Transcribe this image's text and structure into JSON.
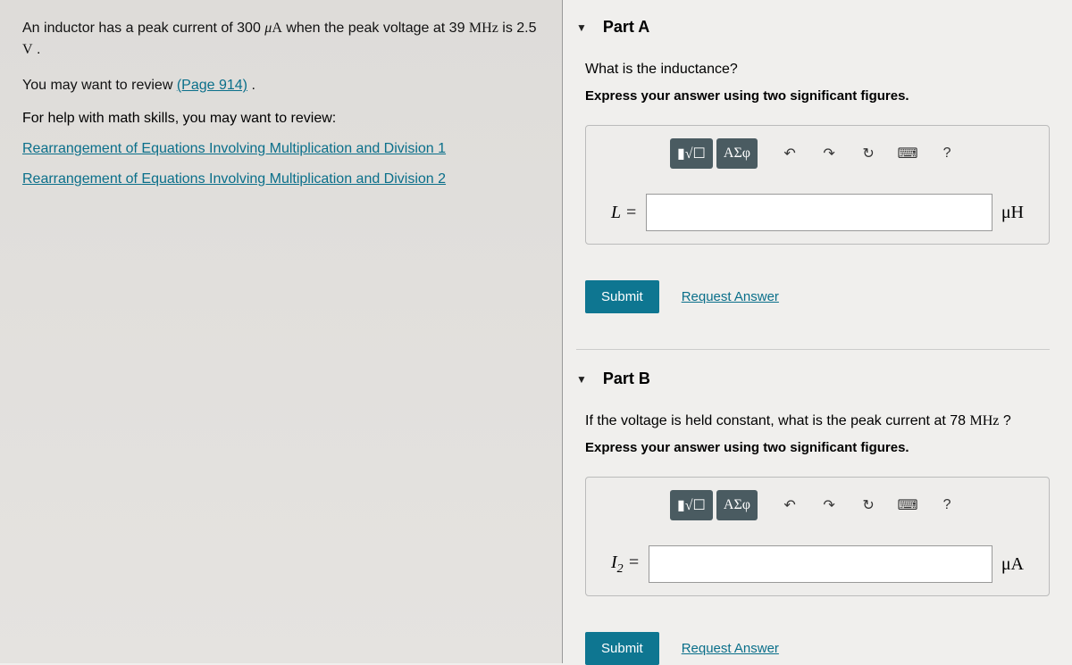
{
  "problem": {
    "statement_html": "An inductor has a peak current of 300 <span class='unit'><i>μ</i>A</span> when the peak voltage at 39 <span class='unit'>MHz</span> is 2.5 <span class='unit'>V</span> .",
    "review_prefix": "You may want to review ",
    "review_link": "(Page 914)",
    "review_suffix": " .",
    "math_help_intro": "For help with math skills, you may want to review:",
    "link1": "Rearrangement of Equations Involving Multiplication and Division 1",
    "link2": "Rearrangement of Equations Involving Multiplication and Division 2"
  },
  "partA": {
    "title": "Part A",
    "question": "What is the inductance?",
    "instruction": "Express your answer using two significant figures.",
    "var": "L =",
    "unit": "μH",
    "submit": "Submit",
    "request": "Request Answer"
  },
  "partB": {
    "title": "Part B",
    "question_html": "If the voltage is held constant, what is the peak current at 78 <span class='unit' style='font-family:Times New Roman,serif'>MHz</span> ?",
    "instruction": "Express your answer using two significant figures.",
    "var_html": "<i>I</i><span class='sub'>2</span> =",
    "unit": "μA",
    "submit": "Submit",
    "request": "Request Answer"
  },
  "toolbar": {
    "templates": "▮√☐",
    "greek": "ΑΣφ",
    "undo": "↶",
    "redo": "↷",
    "reset": "↻",
    "keyboard": "⌨",
    "help": "?"
  }
}
